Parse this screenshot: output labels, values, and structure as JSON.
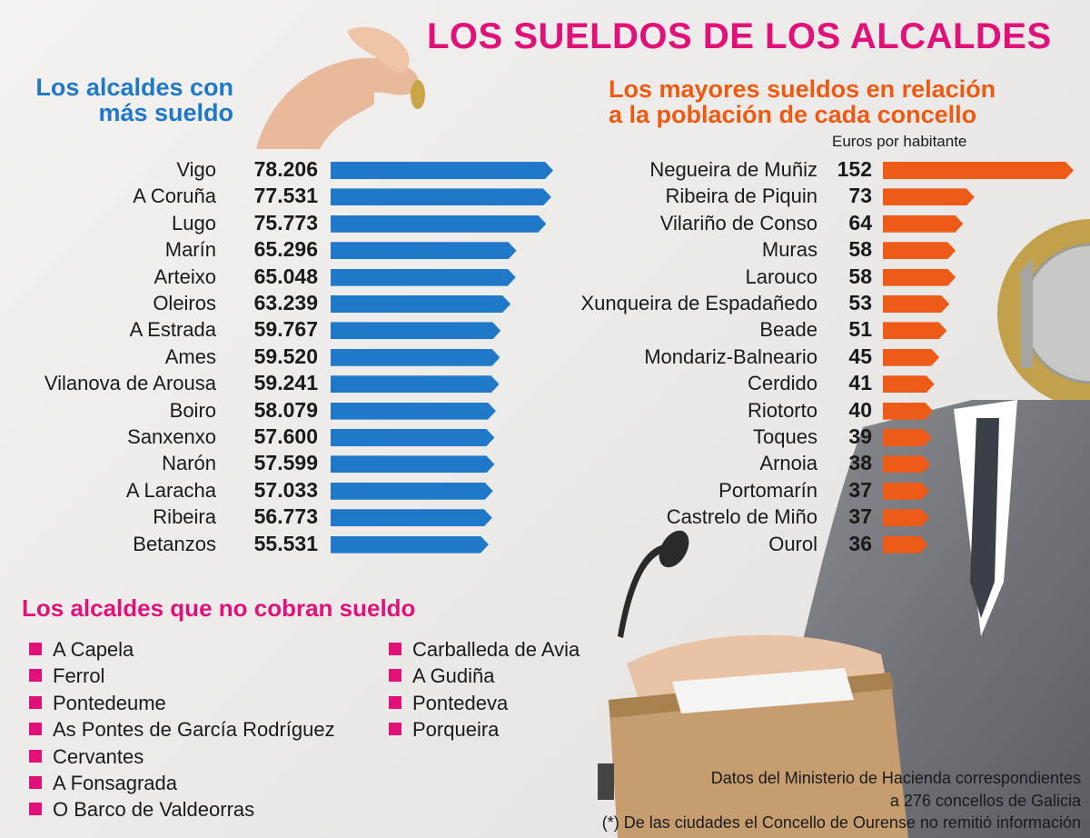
{
  "header": {
    "title": "LOS SUELDOS DE LOS ALCALDES"
  },
  "left_section": {
    "title_line1": "Los alcaldes con",
    "title_line2": "más sueldo"
  },
  "right_section": {
    "title_line1": "Los mayores sueldos en relación",
    "title_line2": "a la población de cada concello",
    "unit_note": "Euros por habitante"
  },
  "no_salary": {
    "title": "Los alcaldes que no cobran sueldo",
    "col1": [
      "A Capela",
      "Ferrol",
      "Pontedeume",
      "As Pontes de García Rodríguez",
      "Cervantes",
      "A Fonsagrada",
      "O Barco de Valdeorras"
    ],
    "col2": [
      "Carballeda de Avia",
      "A Gudiña",
      "Pontedeva",
      "Porqueira"
    ]
  },
  "footer": {
    "line1": "Datos del Ministerio de Hacienda correspondientes",
    "line2": "a 276 concellos de Galicia",
    "line3": "(*) De las ciudades el Concello de Ourense no remitió información"
  },
  "colors": {
    "title": "#e0127a",
    "left_accent": "#1f78c8",
    "right_accent": "#ef5a12",
    "bullet": "#e0127a"
  },
  "chart_data": [
    {
      "type": "bar",
      "orientation": "horizontal",
      "color": "#1f78c8",
      "categories": [
        "Vigo",
        "A Coruña",
        "Lugo",
        "Marín",
        "Arteixo",
        "Oleiros",
        "A Estrada",
        "Ames",
        "Vilanova de Arousa",
        "Boiro",
        "Sanxenxo",
        "Narón",
        "A Laracha",
        "Ribeira",
        "Betanzos"
      ],
      "value_labels": [
        "78.206",
        "77.531",
        "75.773",
        "65.296",
        "65.048",
        "63.239",
        "59.767",
        "59.520",
        "59.241",
        "58.079",
        "57.600",
        "57.599",
        "57.033",
        "56.773",
        "55.531"
      ],
      "values": [
        78206,
        77531,
        75773,
        65296,
        65048,
        63239,
        59767,
        59520,
        59241,
        58079,
        57600,
        57599,
        57033,
        56773,
        55531
      ]
    },
    {
      "type": "bar",
      "orientation": "horizontal",
      "color": "#ee5a18",
      "categories": [
        "Negueira de Muñiz",
        "Ribeira de Piquin",
        "Vilariño de Conso",
        "Muras",
        "Larouco",
        "Xunqueira de Espadañedo",
        "Beade",
        "Mondariz-Balneario",
        "Cerdido",
        "Riotorto",
        "Toques",
        "Arnoia",
        "Portomarín",
        "Castrelo de Miño",
        "Ourol"
      ],
      "value_labels": [
        "152",
        "73",
        "64",
        "58",
        "58",
        "53",
        "51",
        "45",
        "41",
        "40",
        "39",
        "38",
        "37",
        "37",
        "36"
      ],
      "values": [
        152,
        73,
        64,
        58,
        58,
        53,
        51,
        45,
        41,
        40,
        39,
        38,
        37,
        37,
        36
      ]
    }
  ]
}
